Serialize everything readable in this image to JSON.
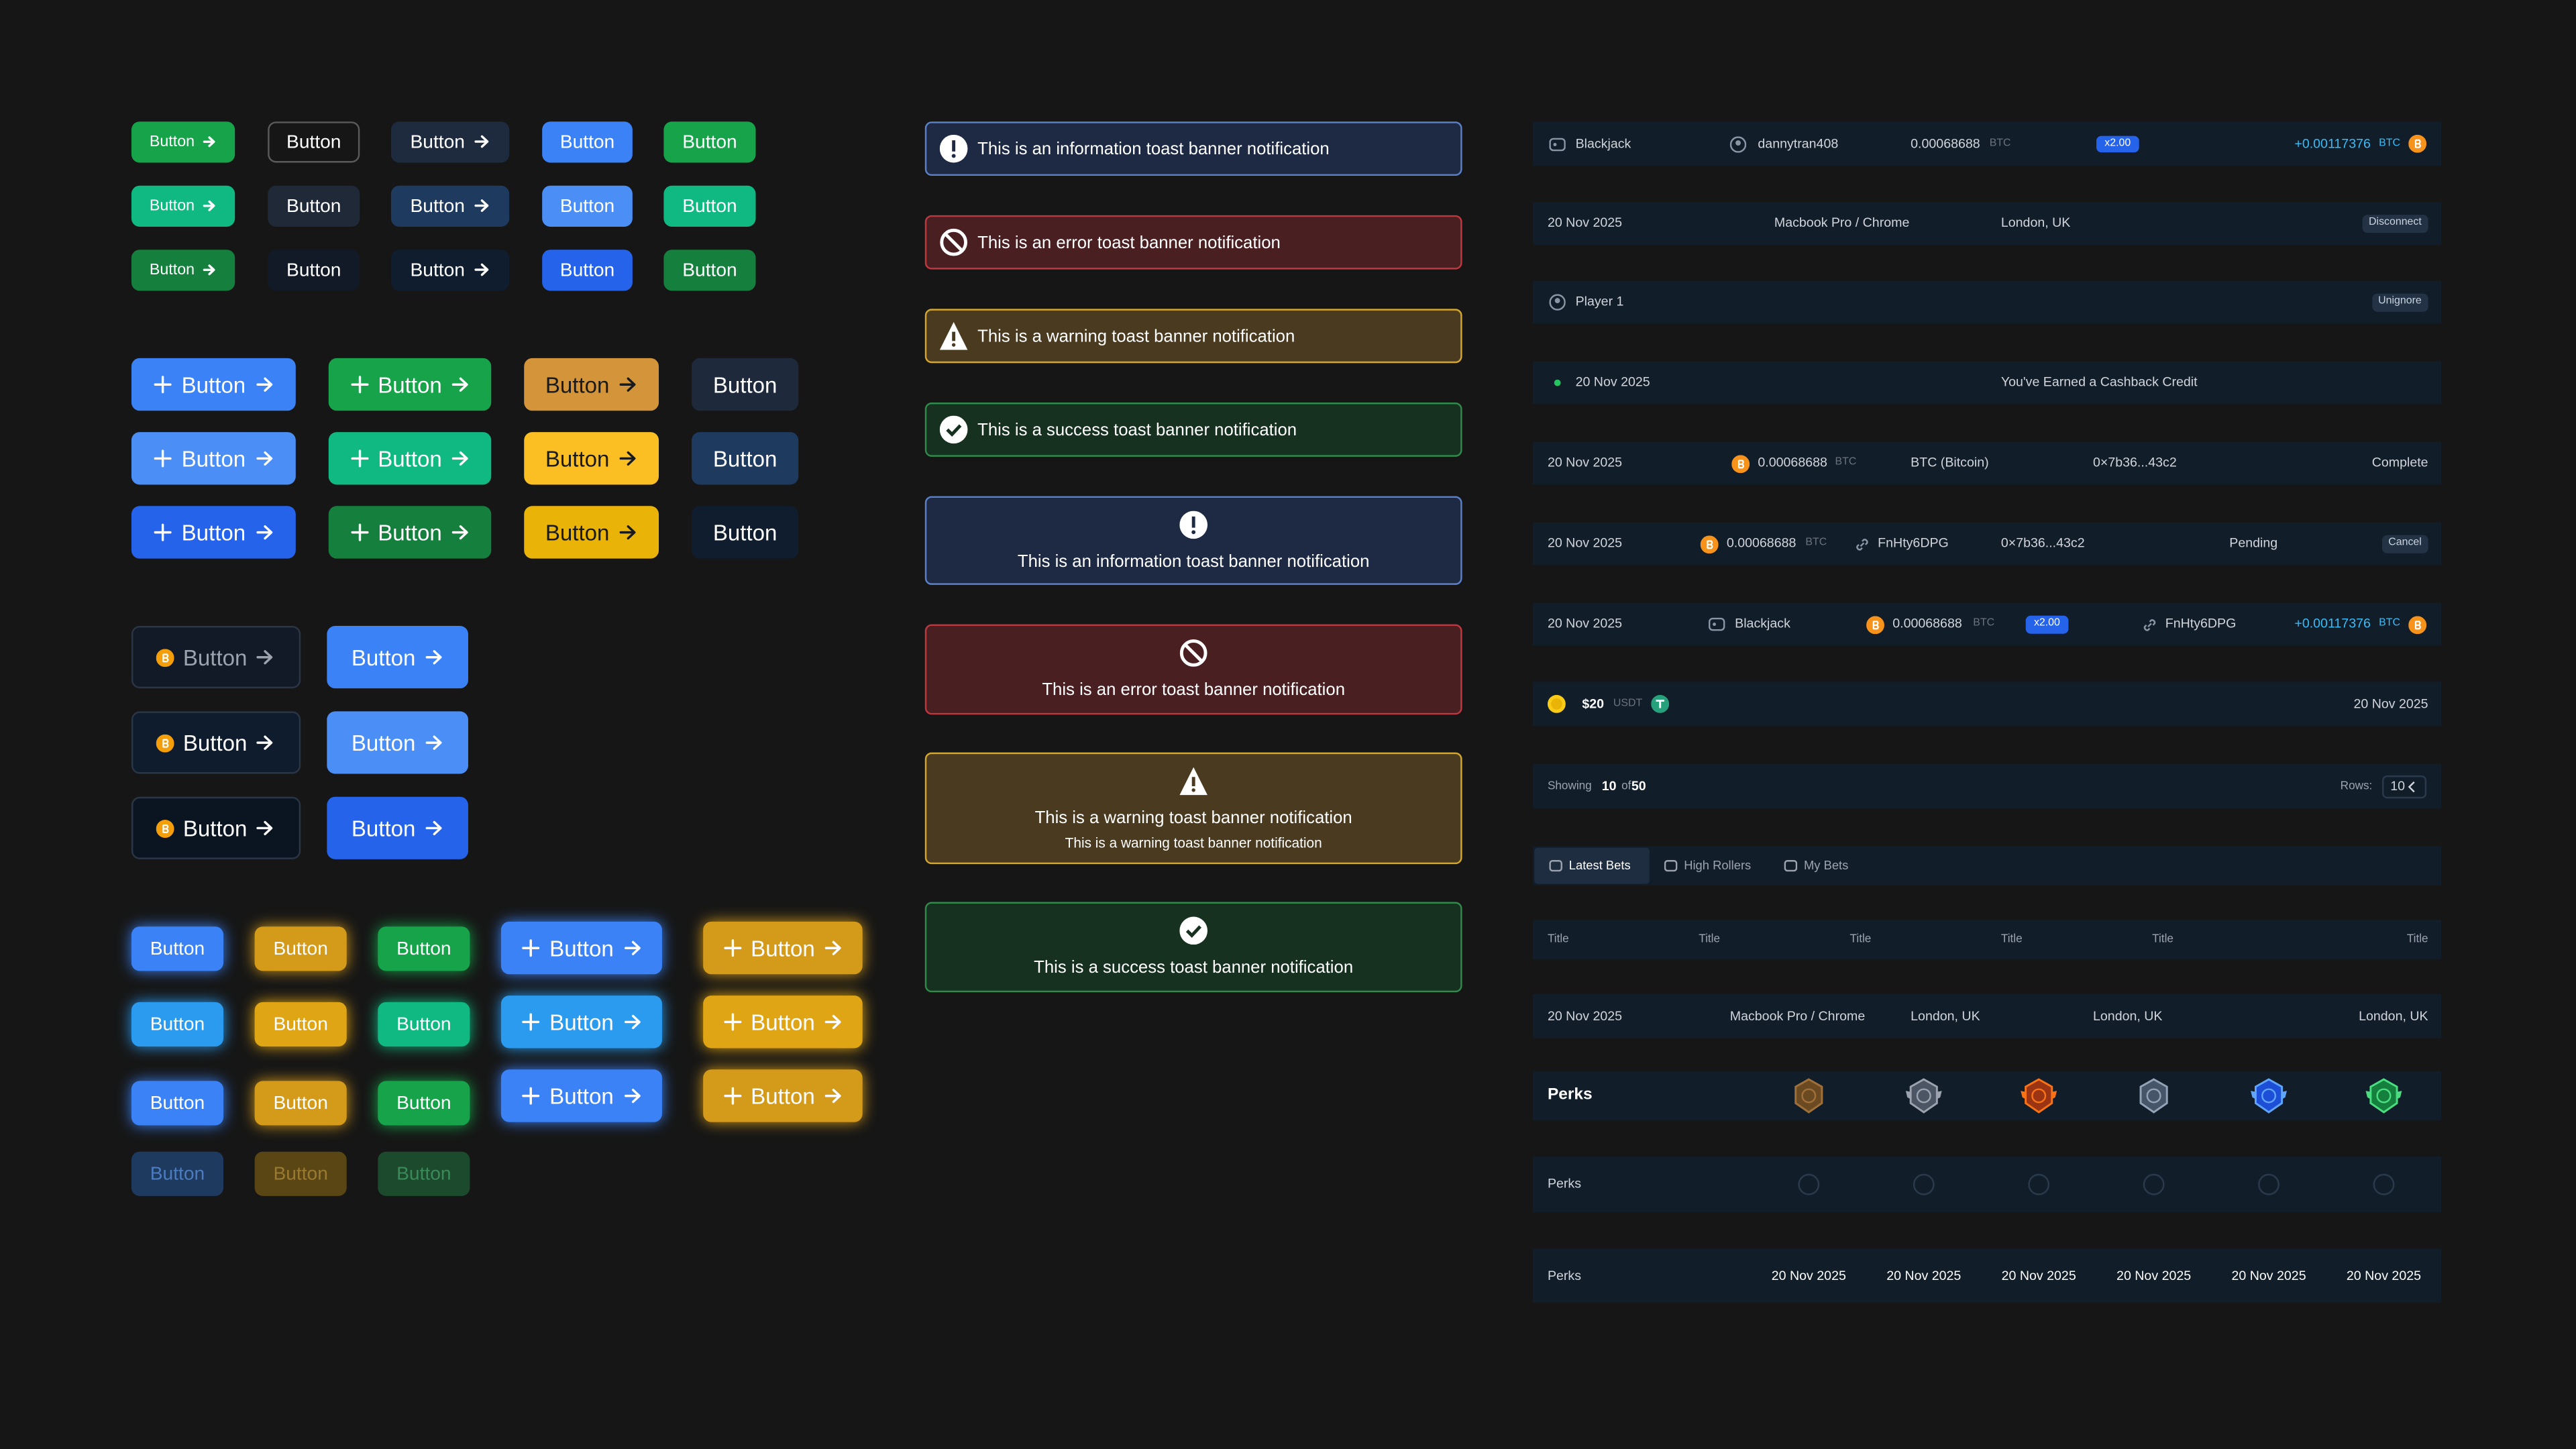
{
  "buttons_small": {
    "rows": [
      [
        "Button",
        "Button",
        "Button",
        "Button",
        "Button"
      ],
      [
        "Button",
        "Button",
        "Button",
        "Button",
        "Button"
      ],
      [
        "Button",
        "Button",
        "Button",
        "Button",
        "Button"
      ]
    ]
  },
  "buttons_medium": {
    "rows": [
      [
        "Button",
        "Button",
        "Button",
        "Button"
      ],
      [
        "Button",
        "Button",
        "Button",
        "Button"
      ],
      [
        "Button",
        "Button",
        "Button",
        "Button"
      ]
    ]
  },
  "buttons_coin": {
    "rows": [
      [
        "Button",
        "Button"
      ],
      [
        "Button",
        "Button"
      ],
      [
        "Button",
        "Button"
      ]
    ]
  },
  "buttons_glow": {
    "columns": [
      [
        "Button",
        "Button",
        "Button",
        "Button"
      ],
      [
        "Button",
        "Button",
        "Button",
        "Button"
      ],
      [
        "Button",
        "Button",
        "Button",
        "Button"
      ],
      [
        "Button",
        "Button",
        "Button"
      ],
      [
        "Button",
        "Button",
        "Button"
      ]
    ]
  },
  "toasts_inline": [
    "This is an information toast banner notification",
    "This is an error toast banner notification",
    "This is a warning toast banner notification",
    "This is a success toast banner notification"
  ],
  "toasts_stacked": [
    {
      "text": "This is an information toast banner notification"
    },
    {
      "text": "This is an error toast banner notification"
    },
    {
      "text": "This is a warning toast banner notification",
      "subtext": "This is a warning toast banner notification"
    },
    {
      "text": "This is a success toast banner notification"
    }
  ],
  "list_rows": [
    [
      "Blackjack",
      "dannytran408",
      "0.00068688",
      "BTC",
      "x2.00",
      "+0.00117376",
      "BTC"
    ],
    [
      "20 Nov 2025",
      "Macbook Pro / Chrome",
      "London, UK",
      "Disconnect"
    ],
    [
      "Player 1",
      "Unignore"
    ],
    [
      "20 Nov 2025",
      "You've Earned a Cashback Credit"
    ],
    [
      "20 Nov 2025",
      "0.00068688",
      "BTC",
      "BTC (Bitcoin)",
      "0×7b36...43c2",
      "Complete"
    ],
    [
      "20 Nov 2025",
      "0.00068688",
      "BTC",
      "FnHty6DPG",
      "0×7b36...43c2",
      "Pending",
      "Cancel"
    ],
    [
      "20 Nov 2025",
      "Blackjack",
      "0.00068688",
      "BTC",
      "x2.00",
      "FnHty6DPG",
      "+0.00117376",
      "BTC"
    ],
    [
      "$20",
      "USDT",
      "20 Nov 2025"
    ],
    [
      "Showing",
      "10",
      "of",
      "50",
      "Rows:",
      "10"
    ]
  ],
  "tabs": [
    "Latest Bets",
    "High Rollers",
    "My Bets"
  ],
  "table_header": [
    "Title",
    "Title",
    "Title",
    "Title",
    "Title",
    "Title"
  ],
  "table_row": [
    "20 Nov 2025",
    "Macbook Pro / Chrome",
    "London, UK",
    "London, UK",
    "London, UK"
  ],
  "perks_rows": [
    {
      "label": "Perks"
    },
    {
      "label": "Perks"
    },
    {
      "label": "Perks",
      "dates": [
        "20 Nov 2025",
        "20 Nov 2025",
        "20 Nov 2025",
        "20 Nov 2025",
        "20 Nov 2025",
        "20 Nov 2025"
      ]
    }
  ]
}
